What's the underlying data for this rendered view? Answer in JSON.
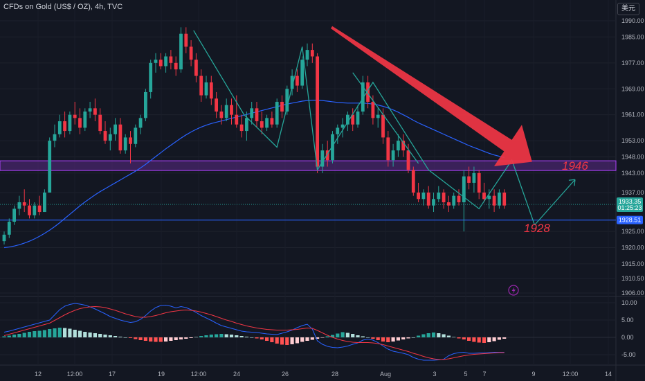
{
  "header": {
    "title": "CFDs on Gold (US$ / OZ), 4h, TVC",
    "currency_label": "美元"
  },
  "colors": {
    "background": "#131722",
    "up": "#26a69a",
    "down": "#f23645",
    "moving_average": "#2962ff",
    "zone": "#5b2a86",
    "zone_border": "#b042ff",
    "support_line": "#2962ff",
    "pattern_lines": "#26a69a",
    "arrow": "#f23645",
    "annotation_text": "#f23645"
  },
  "chart_data": [
    {
      "type": "candlestick",
      "panel": "price",
      "y_axis_ticks": [
        1990.0,
        1985.0,
        1977.0,
        1969.0,
        1961.0,
        1953.0,
        1948.0,
        1943.0,
        1937.0,
        1925.0,
        1920.0,
        1915.0,
        1910.5,
        1906.0
      ],
      "y_axis_tick_labels": [
        "1990.00",
        "1985.00",
        "1977.00",
        "1969.00",
        "1961.00",
        "1953.00",
        "1948.00",
        "1943.00",
        "1937.00",
        "1925.00",
        "1920.00",
        "1915.00",
        "1910.50",
        "1906.00"
      ],
      "x_axis_tick_labels": [
        "12",
        "12:00",
        "17",
        "19",
        "12:00",
        "24",
        "26",
        "28",
        "Aug",
        "3",
        "5",
        "7",
        "9",
        "12:00",
        "14"
      ],
      "current_price": {
        "label": "1933.35",
        "countdown": "01:25:23",
        "value": 1933.35
      },
      "support_level": {
        "label": "1928.51",
        "value": 1928.51
      },
      "resistance_zone": [
        1943.8,
        1946.8
      ],
      "annotations": [
        "1946",
        "1928"
      ],
      "ohlc": [
        [
          1922,
          1925,
          1921,
          1924
        ],
        [
          1924,
          1929,
          1923,
          1928
        ],
        [
          1928,
          1933,
          1927,
          1932
        ],
        [
          1932,
          1936,
          1930,
          1934
        ],
        [
          1934,
          1938,
          1931,
          1933
        ],
        [
          1933,
          1935,
          1929,
          1930
        ],
        [
          1930,
          1934,
          1929,
          1933
        ],
        [
          1933,
          1936,
          1930,
          1931
        ],
        [
          1931,
          1938,
          1931,
          1937
        ],
        [
          1937,
          1954,
          1937,
          1953
        ],
        [
          1953,
          1958,
          1951,
          1955
        ],
        [
          1955,
          1961,
          1954,
          1959
        ],
        [
          1959,
          1962,
          1954,
          1956
        ],
        [
          1956,
          1962,
          1955,
          1961
        ],
        [
          1961,
          1965,
          1958,
          1960
        ],
        [
          1960,
          1963,
          1955,
          1957
        ],
        [
          1957,
          1963,
          1956,
          1962
        ],
        [
          1962,
          1965,
          1960,
          1963
        ],
        [
          1963,
          1966,
          1959,
          1961
        ],
        [
          1961,
          1963,
          1955,
          1956
        ],
        [
          1956,
          1959,
          1952,
          1953
        ],
        [
          1953,
          1957,
          1950,
          1955
        ],
        [
          1955,
          1960,
          1953,
          1958
        ],
        [
          1958,
          1960,
          1949,
          1950
        ],
        [
          1950,
          1955,
          1949,
          1954
        ],
        [
          1954,
          1956,
          1946,
          1952
        ],
        [
          1952,
          1958,
          1951,
          1957
        ],
        [
          1957,
          1961,
          1955,
          1960
        ],
        [
          1960,
          1969,
          1959,
          1968
        ],
        [
          1968,
          1978,
          1966,
          1977
        ],
        [
          1977,
          1980,
          1974,
          1978
        ],
        [
          1978,
          1980,
          1975,
          1976
        ],
        [
          1976,
          1980,
          1974,
          1979
        ],
        [
          1979,
          1981,
          1975,
          1977
        ],
        [
          1977,
          1979,
          1973,
          1975
        ],
        [
          1975,
          1988,
          1974,
          1986
        ],
        [
          1986,
          1988,
          1980,
          1982
        ],
        [
          1982,
          1984,
          1976,
          1978
        ],
        [
          1978,
          1980,
          1971,
          1973
        ],
        [
          1973,
          1975,
          1965,
          1967
        ],
        [
          1967,
          1973,
          1966,
          1971
        ],
        [
          1971,
          1973,
          1964,
          1966
        ],
        [
          1966,
          1968,
          1960,
          1962
        ],
        [
          1962,
          1964,
          1958,
          1960
        ],
        [
          1960,
          1966,
          1959,
          1964
        ],
        [
          1964,
          1966,
          1958,
          1961
        ],
        [
          1961,
          1967,
          1957,
          1958
        ],
        [
          1958,
          1961,
          1954,
          1956
        ],
        [
          1956,
          1962,
          1953,
          1960
        ],
        [
          1960,
          1965,
          1958,
          1963
        ],
        [
          1963,
          1965,
          1957,
          1959
        ],
        [
          1959,
          1962,
          1955,
          1957
        ],
        [
          1957,
          1961,
          1956,
          1960
        ],
        [
          1960,
          1962,
          1957,
          1958
        ],
        [
          1958,
          1966,
          1957,
          1965
        ],
        [
          1965,
          1967,
          1960,
          1962
        ],
        [
          1962,
          1970,
          1961,
          1969
        ],
        [
          1969,
          1975,
          1967,
          1973
        ],
        [
          1973,
          1975,
          1968,
          1970
        ],
        [
          1970,
          1979,
          1969,
          1978
        ],
        [
          1978,
          1983,
          1976,
          1981
        ],
        [
          1981,
          1983,
          1977,
          1979
        ],
        [
          1979,
          1980,
          1943,
          1945
        ],
        [
          1945,
          1952,
          1943,
          1950
        ],
        [
          1950,
          1953,
          1945,
          1947
        ],
        [
          1947,
          1956,
          1946,
          1955
        ],
        [
          1955,
          1958,
          1952,
          1957
        ],
        [
          1957,
          1960,
          1954,
          1958
        ],
        [
          1958,
          1962,
          1956,
          1961
        ],
        [
          1961,
          1963,
          1956,
          1958
        ],
        [
          1958,
          1964,
          1957,
          1962
        ],
        [
          1962,
          1973,
          1961,
          1971
        ],
        [
          1971,
          1973,
          1963,
          1965
        ],
        [
          1965,
          1967,
          1958,
          1960
        ],
        [
          1960,
          1963,
          1957,
          1961
        ],
        [
          1961,
          1963,
          1952,
          1954
        ],
        [
          1954,
          1956,
          1945,
          1947
        ],
        [
          1947,
          1952,
          1945,
          1950
        ],
        [
          1950,
          1955,
          1948,
          1953
        ],
        [
          1953,
          1955,
          1948,
          1950
        ],
        [
          1950,
          1952,
          1943,
          1944
        ],
        [
          1944,
          1945,
          1936,
          1937
        ],
        [
          1937,
          1940,
          1934,
          1935
        ],
        [
          1935,
          1938,
          1933,
          1937
        ],
        [
          1937,
          1939,
          1932,
          1933
        ],
        [
          1933,
          1937,
          1931,
          1935
        ],
        [
          1935,
          1939,
          1934,
          1937
        ],
        [
          1937,
          1938,
          1932,
          1934
        ],
        [
          1934,
          1936,
          1931,
          1933
        ],
        [
          1933,
          1937,
          1932,
          1936
        ],
        [
          1936,
          1938,
          1933,
          1934
        ],
        [
          1934,
          1944,
          1925,
          1942
        ],
        [
          1942,
          1945,
          1938,
          1940
        ],
        [
          1940,
          1945,
          1937,
          1943
        ],
        [
          1943,
          1944,
          1935,
          1937
        ],
        [
          1937,
          1940,
          1934,
          1935
        ],
        [
          1935,
          1938,
          1932,
          1936
        ],
        [
          1936,
          1938,
          1931,
          1933
        ],
        [
          1933,
          1938,
          1932,
          1937
        ],
        [
          1937,
          1938,
          1932,
          1933
        ]
      ],
      "series": [
        {
          "name": "",
          "type": "moving_average",
          "values": [
            1920,
            1920.2,
            1920.5,
            1920.9,
            1921.4,
            1922,
            1922.7,
            1923.5,
            1924.4,
            1925.4,
            1926.5,
            1927.7,
            1929,
            1930.3,
            1931.6,
            1932.9,
            1934.1,
            1935.2,
            1936.3,
            1937.3,
            1938.2,
            1939.1,
            1940,
            1940.9,
            1941.8,
            1942.7,
            1943.6,
            1944.6,
            1945.7,
            1946.9,
            1948.1,
            1949.3,
            1950.5,
            1951.6,
            1952.7,
            1953.8,
            1954.8,
            1955.7,
            1956.5,
            1957.2,
            1957.8,
            1958.3,
            1958.7,
            1959.1,
            1959.5,
            1959.9,
            1960.3,
            1960.7,
            1961.1,
            1961.5,
            1961.9,
            1962.3,
            1962.7,
            1963.1,
            1963.5,
            1963.9,
            1964.3,
            1964.6,
            1964.9,
            1965.2,
            1965.4,
            1965.5,
            1965.5,
            1965.4,
            1965.2,
            1965,
            1964.8,
            1964.7,
            1964.6,
            1964.6,
            1964.6,
            1964.6,
            1964.5,
            1964.3,
            1964,
            1963.6,
            1963.1,
            1962.5,
            1961.8,
            1961,
            1960.2,
            1959.3,
            1958.5,
            1957.8,
            1957.1,
            1956.4,
            1955.7,
            1955,
            1954.3,
            1953.6,
            1952.9,
            1952.2,
            1951.5,
            1950.9,
            1950.3,
            1949.7,
            1949.1,
            1948.6,
            1948.2,
            1947.8
          ]
        }
      ]
    },
    {
      "type": "macd",
      "panel": "indicator",
      "y_axis_ticks": [
        10.0,
        5.0,
        0.0,
        -5.0
      ],
      "y_axis_tick_labels": [
        "10.00",
        "5.00",
        "0.00",
        "-5.00"
      ],
      "ylim": [
        -7,
        11
      ],
      "histogram": [
        0.3,
        0.5,
        0.8,
        1.0,
        1.3,
        1.6,
        1.8,
        1.9,
        2.1,
        2.4,
        2.6,
        2.8,
        2.7,
        2.5,
        2.2,
        1.9,
        1.6,
        1.4,
        1.2,
        1.0,
        0.8,
        0.6,
        0.4,
        0.2,
        0.0,
        -0.2,
        -0.5,
        -0.8,
        -1.0,
        -1.2,
        -1.3,
        -1.3,
        -1.2,
        -1.0,
        -0.8,
        -0.6,
        -0.4,
        -0.2,
        0.1,
        0.4,
        0.6,
        0.8,
        0.9,
        1.0,
        0.9,
        0.8,
        0.6,
        0.4,
        0.2,
        0.0,
        -0.3,
        -0.6,
        -1.0,
        -1.4,
        -1.8,
        -2.1,
        -2.2,
        -2.0,
        -1.7,
        -1.3,
        -1.0,
        -0.7,
        -0.4,
        -0.1,
        0.3,
        0.7,
        1.1,
        1.5,
        1.3,
        1.0,
        0.6,
        0.3,
        0.0,
        -0.4,
        -0.8,
        -1.2,
        -1.4,
        -1.2,
        -0.9,
        -0.6,
        -0.3,
        0.0,
        0.5,
        0.9,
        1.2,
        1.4,
        1.2,
        0.9,
        0.5,
        0.1,
        -0.3,
        -0.6,
        -1.0,
        -1.3,
        -1.5,
        -1.6,
        -1.4,
        -1.1,
        -0.7,
        -0.4
      ],
      "series": [
        {
          "name": "",
          "color": "#2962ff",
          "values": [
            1.5,
            1.8,
            2.2,
            2.6,
            3.0,
            3.4,
            3.8,
            4.2,
            4.6,
            5.0,
            6.5,
            8.0,
            9.0,
            9.5,
            9.8,
            9.6,
            9.3,
            8.8,
            8.2,
            7.5,
            6.8,
            6.0,
            5.5,
            5.0,
            4.6,
            4.3,
            4.5,
            5.2,
            6.3,
            7.6,
            8.6,
            9.2,
            9.3,
            9.0,
            8.5,
            8.9,
            8.6,
            8.0,
            7.2,
            6.3,
            5.6,
            4.9,
            4.1,
            3.4,
            3.0,
            2.6,
            2.2,
            1.8,
            1.6,
            1.5,
            1.4,
            1.2,
            1.0,
            0.9,
            0.8,
            1.2,
            1.6,
            2.1,
            2.8,
            3.4,
            3.8,
            2.4,
            -1.0,
            -2.0,
            -2.6,
            -2.9,
            -3.0,
            -2.8,
            -2.5,
            -2.0,
            -1.6,
            -0.8,
            -0.5,
            -0.8,
            -1.5,
            -2.5,
            -3.4,
            -4.0,
            -4.3,
            -4.6,
            -5.0,
            -5.8,
            -6.3,
            -6.6,
            -6.6,
            -6.6,
            -6.5,
            -6.3,
            -5.3,
            -4.7,
            -4.4,
            -4.3,
            -4.6,
            -4.6,
            -4.5,
            -4.5,
            -4.4,
            -4.3,
            -4.3,
            -4.3
          ]
        },
        {
          "name": "",
          "color": "#f23645",
          "values": [
            0.5,
            0.9,
            1.3,
            1.7,
            2.1,
            2.5,
            2.9,
            3.3,
            3.7,
            4.1,
            4.9,
            5.7,
            6.5,
            7.2,
            7.8,
            8.3,
            8.6,
            8.8,
            8.9,
            8.8,
            8.6,
            8.2,
            7.8,
            7.3,
            6.8,
            6.4,
            6.0,
            5.8,
            5.8,
            6.0,
            6.3,
            6.7,
            7.1,
            7.4,
            7.6,
            7.8,
            7.9,
            7.8,
            7.6,
            7.3,
            6.9,
            6.5,
            6.0,
            5.5,
            5.0,
            4.6,
            4.1,
            3.7,
            3.3,
            3.0,
            2.7,
            2.5,
            2.3,
            2.2,
            2.1,
            2.1,
            2.1,
            2.2,
            2.3,
            2.5,
            2.7,
            2.6,
            2.0,
            1.3,
            0.6,
            0.0,
            -0.5,
            -0.9,
            -1.2,
            -1.4,
            -1.5,
            -1.5,
            -1.5,
            -1.6,
            -1.8,
            -2.1,
            -2.5,
            -2.9,
            -3.3,
            -3.7,
            -4.1,
            -4.6,
            -5.0,
            -5.5,
            -5.9,
            -6.2,
            -6.4,
            -6.4,
            -6.2,
            -5.9,
            -5.6,
            -5.3,
            -5.1,
            -4.9,
            -4.8,
            -4.7,
            -4.6,
            -4.5,
            -4.4,
            -4.4
          ]
        }
      ]
    }
  ]
}
